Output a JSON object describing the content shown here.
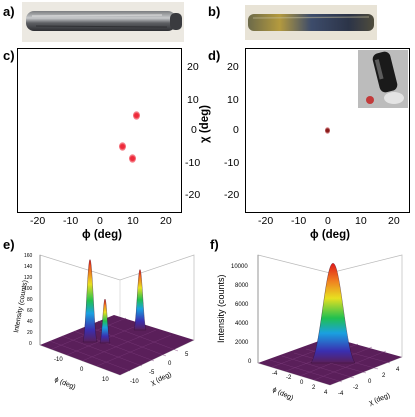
{
  "panels": {
    "a": "a)",
    "b": "b)",
    "c": "c)",
    "d": "d)",
    "e": "e)",
    "f": "f)"
  },
  "colors": {
    "spot_red": "#ee2a3a",
    "spot_dark": "#8b1a1a",
    "surface_base": "#5a1f5a"
  },
  "chart_data": [
    {
      "panel": "c",
      "type": "scatter",
      "xlabel": "ϕ (deg)",
      "ylabel": "",
      "xlim": [
        -25,
        25
      ],
      "ylim": [
        -25,
        25
      ],
      "xticks": [
        "-20",
        "-10",
        "0",
        "10",
        "20"
      ],
      "yticks": [
        "20",
        "10",
        "0",
        "-10",
        "-20"
      ],
      "points": [
        {
          "x": 11.5,
          "y": 4.5
        },
        {
          "x": 7.0,
          "y": -5.0
        },
        {
          "x": 10.0,
          "y": -8.5
        }
      ]
    },
    {
      "panel": "d",
      "type": "scatter",
      "xlabel": "ϕ (deg)",
      "ylabel": "χ (deg)",
      "xlim": [
        -25,
        25
      ],
      "ylim": [
        -25,
        25
      ],
      "xticks": [
        "-20",
        "-10",
        "0",
        "10",
        "20"
      ],
      "yticks": [
        "20",
        "10",
        "0",
        "-10",
        "-20"
      ],
      "points": [
        {
          "x": 0,
          "y": 0
        }
      ]
    },
    {
      "panel": "e",
      "type": "surface3d",
      "zlabel": "Intensity (counts)",
      "xlabel": "ϕ (deg)",
      "ylabel": "χ (deg)",
      "zticks": [
        "0",
        "20",
        "40",
        "60",
        "80",
        "100",
        "120",
        "140",
        "160"
      ],
      "phi_ticks": [
        "-10",
        "0",
        "10"
      ],
      "chi_ticks": [
        "-10",
        "-5",
        "0",
        "5"
      ],
      "peaks": [
        {
          "height": 150
        },
        {
          "height": 80
        },
        {
          "height": 110
        }
      ]
    },
    {
      "panel": "f",
      "type": "surface3d",
      "zlabel": "Intensity (counts)",
      "xlabel": "ϕ (deg)",
      "ylabel": "χ (deg)",
      "zticks": [
        "0",
        "2000",
        "4000",
        "6000",
        "8000",
        "10000"
      ],
      "phi_ticks": [
        "-4",
        "-2",
        "0",
        "2",
        "4"
      ],
      "chi_ticks": [
        "-4",
        "-2",
        "0",
        "2",
        "4"
      ],
      "peaks": [
        {
          "height": 10500
        }
      ]
    }
  ]
}
